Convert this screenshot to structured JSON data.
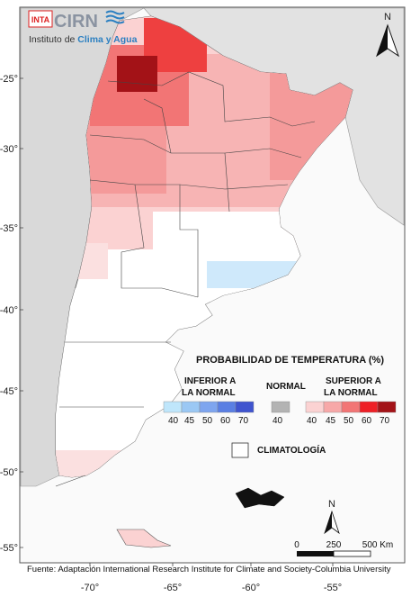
{
  "logo": {
    "inta": "INTA",
    "cirn": "CIRN",
    "institute_prefix": "Instituto de ",
    "institute_highlight": "Clima y Agua"
  },
  "north_arrow": {
    "label": "N"
  },
  "axes": {
    "lat_labels": [
      "-25°",
      "-30°",
      "-35°",
      "-40°",
      "-45°",
      "-50°",
      "-55°"
    ],
    "lon_labels": [
      "-70°",
      "-65°",
      "-60°",
      "-55°"
    ]
  },
  "legend": {
    "title": "PROBABILIDAD DE TEMPERATURA (%)",
    "below": {
      "line1": "INFERIOR A",
      "line2": "LA NORMAL",
      "colors": [
        "#bfe6fb",
        "#9bc8f4",
        "#7ea5ef",
        "#5a7fe3",
        "#3f54cf"
      ],
      "values": [
        "40",
        "45",
        "50",
        "60",
        "70"
      ]
    },
    "normal": {
      "label": "NORMAL",
      "color": "#b3b3b3",
      "value": "40"
    },
    "above": {
      "line1": "SUPERIOR A",
      "line2": "LA NORMAL",
      "colors": [
        "#fbd2d2",
        "#f7a8a8",
        "#f27575",
        "#ee1f26",
        "#a31217"
      ],
      "values": [
        "40",
        "45",
        "50",
        "60",
        "70"
      ]
    },
    "climatology": "CLIMATOLOGÍA"
  },
  "scale_bar": {
    "labels": [
      "0",
      "250",
      "500 Km"
    ]
  },
  "source": "Fuente: Adaptación International Research Institute for Climate and Society-Columbia University"
}
